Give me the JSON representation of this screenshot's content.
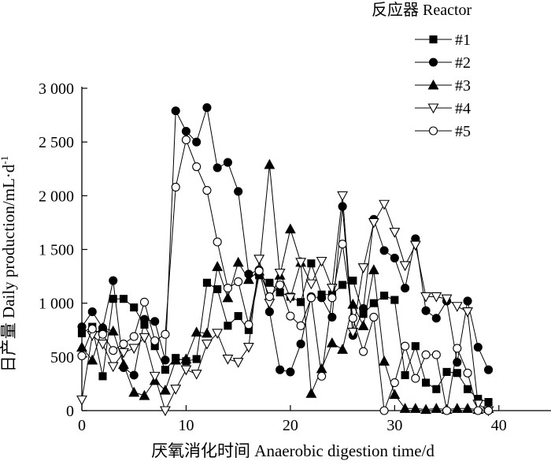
{
  "chart_data": {
    "type": "line",
    "xlabel": "厌氧消化时间 Anaerobic digestion time/d",
    "ylabel": "日产量 Daily production/mL·d",
    "ylabel_superscript": "-1",
    "xlim": [
      0,
      45
    ],
    "ylim": [
      0,
      3000
    ],
    "x_ticks": [
      0,
      10,
      20,
      30,
      40
    ],
    "x_tick_labels": [
      "0",
      "10",
      "20",
      "30",
      "40"
    ],
    "y_ticks": [
      0,
      500,
      1000,
      1500,
      2000,
      2500,
      3000
    ],
    "y_tick_labels": [
      "0",
      "500",
      "1 000",
      "1 500",
      "2 000",
      "2 500",
      "3 000"
    ],
    "grid": false,
    "legend": {
      "title": "反应器 Reactor",
      "placement": "top-right"
    },
    "series": [
      {
        "name": "#1",
        "marker": "square-filled",
        "x": [
          0,
          1,
          2,
          3,
          4,
          5,
          6,
          7,
          8,
          9,
          10,
          11,
          12,
          13,
          14,
          15,
          16,
          17,
          18,
          19,
          20,
          21,
          22,
          23,
          24,
          25,
          26,
          27,
          28,
          29,
          30,
          31,
          32,
          33,
          34,
          35,
          36,
          37,
          38,
          39
        ],
        "y": [
          720,
          780,
          320,
          1040,
          1040,
          960,
          800,
          600,
          380,
          490,
          460,
          480,
          1190,
          1130,
          790,
          880,
          750,
          1260,
          1190,
          1100,
          1060,
          1010,
          1370,
          1080,
          1080,
          1170,
          1210,
          900,
          1000,
          1070,
          1030,
          330,
          600,
          260,
          200,
          360,
          350,
          200,
          110,
          80
        ]
      },
      {
        "name": "#2",
        "marker": "circle-filled",
        "x": [
          0,
          1,
          2,
          3,
          4,
          5,
          6,
          7,
          8,
          9,
          10,
          11,
          12,
          13,
          14,
          15,
          16,
          17,
          18,
          19,
          20,
          21,
          22,
          23,
          24,
          25,
          26,
          27,
          28,
          29,
          30,
          31,
          32,
          33,
          34,
          35,
          36,
          37,
          38,
          39
        ],
        "y": [
          780,
          920,
          770,
          1210,
          400,
          330,
          850,
          830,
          470,
          2790,
          2600,
          2500,
          2820,
          2260,
          2310,
          2040,
          1270,
          1310,
          920,
          380,
          360,
          620,
          1060,
          1050,
          870,
          1900,
          700,
          950,
          1780,
          1490,
          1420,
          1140,
          1600,
          930,
          860,
          1020,
          450,
          1020,
          590,
          380
        ]
      },
      {
        "name": "#3",
        "marker": "triangle-filled",
        "x": [
          0,
          1,
          2,
          3,
          4,
          5,
          6,
          7,
          8,
          9,
          10,
          11,
          12,
          13,
          14,
          15,
          16,
          17,
          18,
          19,
          20,
          21,
          22,
          23,
          24,
          25,
          26,
          27,
          28,
          29,
          30,
          31,
          32,
          33,
          34,
          35,
          36,
          37,
          38,
          39
        ],
        "y": [
          590,
          470,
          770,
          740,
          430,
          170,
          140,
          280,
          190,
          470,
          480,
          730,
          720,
          1340,
          1050,
          1380,
          1220,
          1300,
          2290,
          1260,
          1690,
          1380,
          160,
          390,
          630,
          570,
          990,
          790,
          1310,
          460,
          150,
          20,
          20,
          10,
          20,
          10,
          20,
          20,
          10,
          20
        ]
      },
      {
        "name": "#4",
        "marker": "triangle-open-down",
        "x": [
          0,
          1,
          2,
          3,
          4,
          5,
          6,
          7,
          8,
          9,
          10,
          11,
          12,
          13,
          14,
          15,
          16,
          17,
          18,
          19,
          20,
          21,
          22,
          23,
          24,
          25,
          26,
          27,
          28,
          29,
          30,
          31,
          32,
          33,
          34,
          35,
          36,
          37,
          38,
          39
        ],
        "y": [
          100,
          700,
          620,
          410,
          540,
          580,
          680,
          320,
          0,
          200,
          380,
          340,
          620,
          720,
          480,
          450,
          590,
          1410,
          1000,
          1280,
          1050,
          1380,
          1180,
          1390,
          1140,
          2000,
          730,
          1330,
          1750,
          1920,
          1660,
          1350,
          1540,
          1060,
          1060,
          1040,
          970,
          920,
          60,
          0
        ]
      },
      {
        "name": "#5",
        "marker": "circle-open",
        "x": [
          0,
          1,
          2,
          3,
          4,
          5,
          6,
          7,
          8,
          9,
          10,
          11,
          12,
          13,
          14,
          15,
          16,
          17,
          18,
          19,
          20,
          21,
          22,
          23,
          24,
          25,
          26,
          27,
          28,
          29,
          30,
          31,
          32,
          33,
          34,
          35,
          36,
          37,
          38,
          39
        ],
        "y": [
          510,
          760,
          710,
          560,
          620,
          690,
          1010,
          650,
          710,
          2080,
          2520,
          2270,
          2050,
          1570,
          1140,
          1200,
          800,
          1300,
          1060,
          1170,
          880,
          790,
          1050,
          320,
          1050,
          1550,
          860,
          550,
          870,
          0,
          260,
          600,
          300,
          520,
          520,
          0,
          580,
          350,
          0,
          0
        ]
      }
    ]
  }
}
